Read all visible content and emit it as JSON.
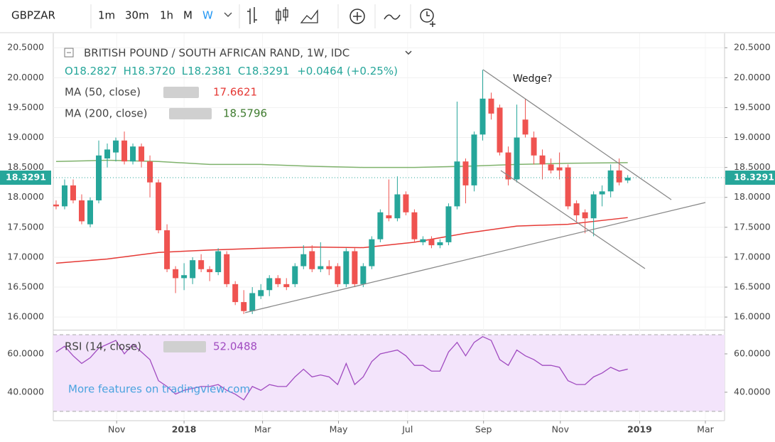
{
  "toolbar": {
    "symbol": "GBPZAR",
    "intervals": [
      "1m",
      "30m",
      "1h",
      "M",
      "W"
    ]
  },
  "chart_data": {
    "type": "candlestick",
    "title": "BRITISH POUND / SOUTH AFRICAN RAND, 1W, IDC",
    "ohlc_labels": {
      "o": "O18.2827",
      "h": "H18.3720",
      "l": "L18.2381",
      "c": "C18.3291"
    },
    "change": "+0.0464 (+0.25%)",
    "up_color": "#26a69a",
    "down_color": "#ef5350",
    "candles": [
      {
        "o": 17.88,
        "h": 17.95,
        "l": 17.8,
        "c": 17.85
      },
      {
        "o": 17.85,
        "h": 18.3,
        "l": 17.8,
        "c": 18.2
      },
      {
        "o": 18.2,
        "h": 18.3,
        "l": 17.9,
        "c": 17.95
      },
      {
        "o": 17.95,
        "h": 18.05,
        "l": 17.55,
        "c": 17.6
      },
      {
        "o": 17.55,
        "h": 18.0,
        "l": 17.5,
        "c": 17.95
      },
      {
        "o": 17.95,
        "h": 18.95,
        "l": 17.9,
        "c": 18.7
      },
      {
        "o": 18.65,
        "h": 18.9,
        "l": 18.5,
        "c": 18.8
      },
      {
        "o": 18.75,
        "h": 19.0,
        "l": 18.6,
        "c": 18.95
      },
      {
        "o": 18.95,
        "h": 19.1,
        "l": 18.55,
        "c": 18.6
      },
      {
        "o": 18.6,
        "h": 18.9,
        "l": 18.55,
        "c": 18.85
      },
      {
        "o": 18.85,
        "h": 18.9,
        "l": 18.5,
        "c": 18.6
      },
      {
        "o": 18.6,
        "h": 18.7,
        "l": 18.0,
        "c": 18.25
      },
      {
        "o": 18.25,
        "h": 18.3,
        "l": 17.4,
        "c": 17.45
      },
      {
        "o": 17.45,
        "h": 17.55,
        "l": 16.75,
        "c": 16.8
      },
      {
        "o": 16.8,
        "h": 16.85,
        "l": 16.4,
        "c": 16.65
      },
      {
        "o": 16.65,
        "h": 16.9,
        "l": 16.45,
        "c": 16.7
      },
      {
        "o": 16.65,
        "h": 17.0,
        "l": 16.55,
        "c": 16.95
      },
      {
        "o": 16.95,
        "h": 17.05,
        "l": 16.75,
        "c": 16.8
      },
      {
        "o": 16.8,
        "h": 16.85,
        "l": 16.6,
        "c": 16.75
      },
      {
        "o": 16.75,
        "h": 17.15,
        "l": 16.7,
        "c": 17.1
      },
      {
        "o": 17.05,
        "h": 17.1,
        "l": 16.5,
        "c": 16.55
      },
      {
        "o": 16.55,
        "h": 16.6,
        "l": 16.2,
        "c": 16.25
      },
      {
        "o": 16.25,
        "h": 16.45,
        "l": 16.05,
        "c": 16.1
      },
      {
        "o": 16.1,
        "h": 16.5,
        "l": 16.05,
        "c": 16.4
      },
      {
        "o": 16.35,
        "h": 16.55,
        "l": 16.3,
        "c": 16.45
      },
      {
        "o": 16.45,
        "h": 16.7,
        "l": 16.35,
        "c": 16.65
      },
      {
        "o": 16.65,
        "h": 16.7,
        "l": 16.5,
        "c": 16.55
      },
      {
        "o": 16.55,
        "h": 16.65,
        "l": 16.45,
        "c": 16.5
      },
      {
        "o": 16.55,
        "h": 16.9,
        "l": 16.5,
        "c": 16.85
      },
      {
        "o": 16.85,
        "h": 17.2,
        "l": 16.8,
        "c": 17.05
      },
      {
        "o": 17.1,
        "h": 17.2,
        "l": 16.75,
        "c": 16.8
      },
      {
        "o": 16.8,
        "h": 17.25,
        "l": 16.75,
        "c": 16.85
      },
      {
        "o": 16.85,
        "h": 16.95,
        "l": 16.7,
        "c": 16.8
      },
      {
        "o": 16.85,
        "h": 16.9,
        "l": 16.5,
        "c": 16.55
      },
      {
        "o": 16.55,
        "h": 17.15,
        "l": 16.5,
        "c": 17.1
      },
      {
        "o": 17.1,
        "h": 17.15,
        "l": 16.5,
        "c": 16.55
      },
      {
        "o": 16.55,
        "h": 16.9,
        "l": 16.5,
        "c": 16.85
      },
      {
        "o": 16.85,
        "h": 17.35,
        "l": 16.8,
        "c": 17.3
      },
      {
        "o": 17.3,
        "h": 17.8,
        "l": 17.25,
        "c": 17.75
      },
      {
        "o": 17.7,
        "h": 18.3,
        "l": 17.6,
        "c": 17.65
      },
      {
        "o": 17.65,
        "h": 18.35,
        "l": 17.6,
        "c": 18.05
      },
      {
        "o": 18.05,
        "h": 18.1,
        "l": 17.7,
        "c": 17.75
      },
      {
        "o": 17.75,
        "h": 17.8,
        "l": 17.25,
        "c": 17.3
      },
      {
        "o": 17.25,
        "h": 17.35,
        "l": 17.2,
        "c": 17.3
      },
      {
        "o": 17.3,
        "h": 17.35,
        "l": 17.15,
        "c": 17.2
      },
      {
        "o": 17.2,
        "h": 17.3,
        "l": 17.15,
        "c": 17.25
      },
      {
        "o": 17.25,
        "h": 17.9,
        "l": 17.2,
        "c": 17.85
      },
      {
        "o": 17.85,
        "h": 19.6,
        "l": 17.8,
        "c": 18.6
      },
      {
        "o": 18.6,
        "h": 18.65,
        "l": 17.9,
        "c": 18.2
      },
      {
        "o": 18.2,
        "h": 19.1,
        "l": 18.1,
        "c": 19.05
      },
      {
        "o": 19.05,
        "h": 20.13,
        "l": 18.95,
        "c": 19.65
      },
      {
        "o": 19.65,
        "h": 19.75,
        "l": 19.3,
        "c": 19.4
      },
      {
        "o": 19.5,
        "h": 19.55,
        "l": 18.7,
        "c": 18.75
      },
      {
        "o": 18.75,
        "h": 18.85,
        "l": 18.2,
        "c": 18.3
      },
      {
        "o": 18.3,
        "h": 19.55,
        "l": 18.25,
        "c": 19.0
      },
      {
        "o": 19.3,
        "h": 19.65,
        "l": 19.0,
        "c": 19.05
      },
      {
        "o": 19.0,
        "h": 19.1,
        "l": 18.55,
        "c": 18.7
      },
      {
        "o": 18.7,
        "h": 18.8,
        "l": 18.3,
        "c": 18.55
      },
      {
        "o": 18.55,
        "h": 18.65,
        "l": 18.4,
        "c": 18.45
      },
      {
        "o": 18.5,
        "h": 18.75,
        "l": 18.3,
        "c": 18.45
      },
      {
        "o": 18.5,
        "h": 18.55,
        "l": 17.8,
        "c": 17.85
      },
      {
        "o": 17.9,
        "h": 17.95,
        "l": 17.6,
        "c": 17.7
      },
      {
        "o": 17.75,
        "h": 17.8,
        "l": 17.4,
        "c": 17.65
      },
      {
        "o": 17.65,
        "h": 18.1,
        "l": 17.35,
        "c": 18.05
      },
      {
        "o": 18.05,
        "h": 18.2,
        "l": 17.85,
        "c": 18.1
      },
      {
        "o": 18.1,
        "h": 18.55,
        "l": 18.0,
        "c": 18.45
      },
      {
        "o": 18.45,
        "h": 18.65,
        "l": 18.2,
        "c": 18.25
      },
      {
        "o": 18.2827,
        "h": 18.372,
        "l": 18.2381,
        "c": 18.3291
      }
    ],
    "series": [
      {
        "name": "MA (50, close)",
        "color": "#e53935",
        "x": [
          0,
          6,
          12,
          18,
          24,
          30,
          36,
          42,
          48,
          54,
          60,
          67
        ],
        "values": [
          16.9,
          16.97,
          17.08,
          17.12,
          17.15,
          17.17,
          17.16,
          17.25,
          17.4,
          17.52,
          17.55,
          17.6621
        ]
      },
      {
        "name": "MA (200, close)",
        "color": "#7fb26c",
        "x": [
          0,
          6,
          12,
          18,
          24,
          30,
          36,
          42,
          48,
          54,
          60,
          67
        ],
        "values": [
          18.6,
          18.62,
          18.6,
          18.55,
          18.55,
          18.52,
          18.5,
          18.5,
          18.52,
          18.55,
          18.57,
          18.5796
        ]
      }
    ],
    "last_price": {
      "value": 18.3291,
      "label": "18.3291"
    },
    "annotation": "Wedge?",
    "xlim": [
      -0.33,
      78.35
    ],
    "xticks": [
      {
        "value": 7.1,
        "label": "Nov"
      },
      {
        "value": 15,
        "label": "2018"
      },
      {
        "value": 24.2,
        "label": "Mar"
      },
      {
        "value": 33.1,
        "label": "May"
      },
      {
        "value": 41.2,
        "label": "Jul"
      },
      {
        "value": 50.1,
        "label": "Sep"
      },
      {
        "value": 59.1,
        "label": "Nov"
      },
      {
        "value": 68.4,
        "label": "2019"
      },
      {
        "value": 76.1,
        "label": "Mar"
      }
    ],
    "ylim": [
      15.8,
      20.74
    ],
    "yticks": [
      {
        "value": 16,
        "label": "16.0000"
      },
      {
        "value": 16.5,
        "label": "16.5000"
      },
      {
        "value": 17,
        "label": "17.0000"
      },
      {
        "value": 17.5,
        "label": "17.5000"
      },
      {
        "value": 18,
        "label": "18.0000"
      },
      {
        "value": 18.5,
        "label": "18.5000"
      },
      {
        "value": 19,
        "label": "19.0000"
      },
      {
        "value": 19.5,
        "label": "19.5000"
      },
      {
        "value": 20,
        "label": "20.0000"
      },
      {
        "value": 20.5,
        "label": "20.5000"
      }
    ],
    "rsi": {
      "name": "RSI (14, close)",
      "color": "#a04bc0",
      "values": [
        61,
        64,
        59,
        55,
        58,
        63,
        65,
        67,
        60,
        65,
        61,
        57,
        46,
        43,
        39,
        41,
        42,
        43,
        43,
        44,
        41,
        39,
        36,
        43,
        41,
        44,
        43,
        43,
        48,
        52,
        48,
        49,
        48,
        44,
        55,
        44,
        48,
        56,
        60,
        61,
        62,
        59,
        54,
        54,
        51,
        51,
        61,
        66,
        59,
        66,
        69,
        67,
        57,
        54,
        62,
        59,
        57,
        54,
        54,
        53,
        46,
        44,
        44,
        48,
        50,
        53,
        51,
        52.0488
      ],
      "ylim": [
        25.9,
        71.85
      ],
      "band": [
        30,
        70
      ],
      "yticks": [
        {
          "value": 40,
          "label": "40.0000"
        },
        {
          "value": 60,
          "label": "60.0000"
        }
      ]
    },
    "watermark": "More features on tradingview.com"
  }
}
